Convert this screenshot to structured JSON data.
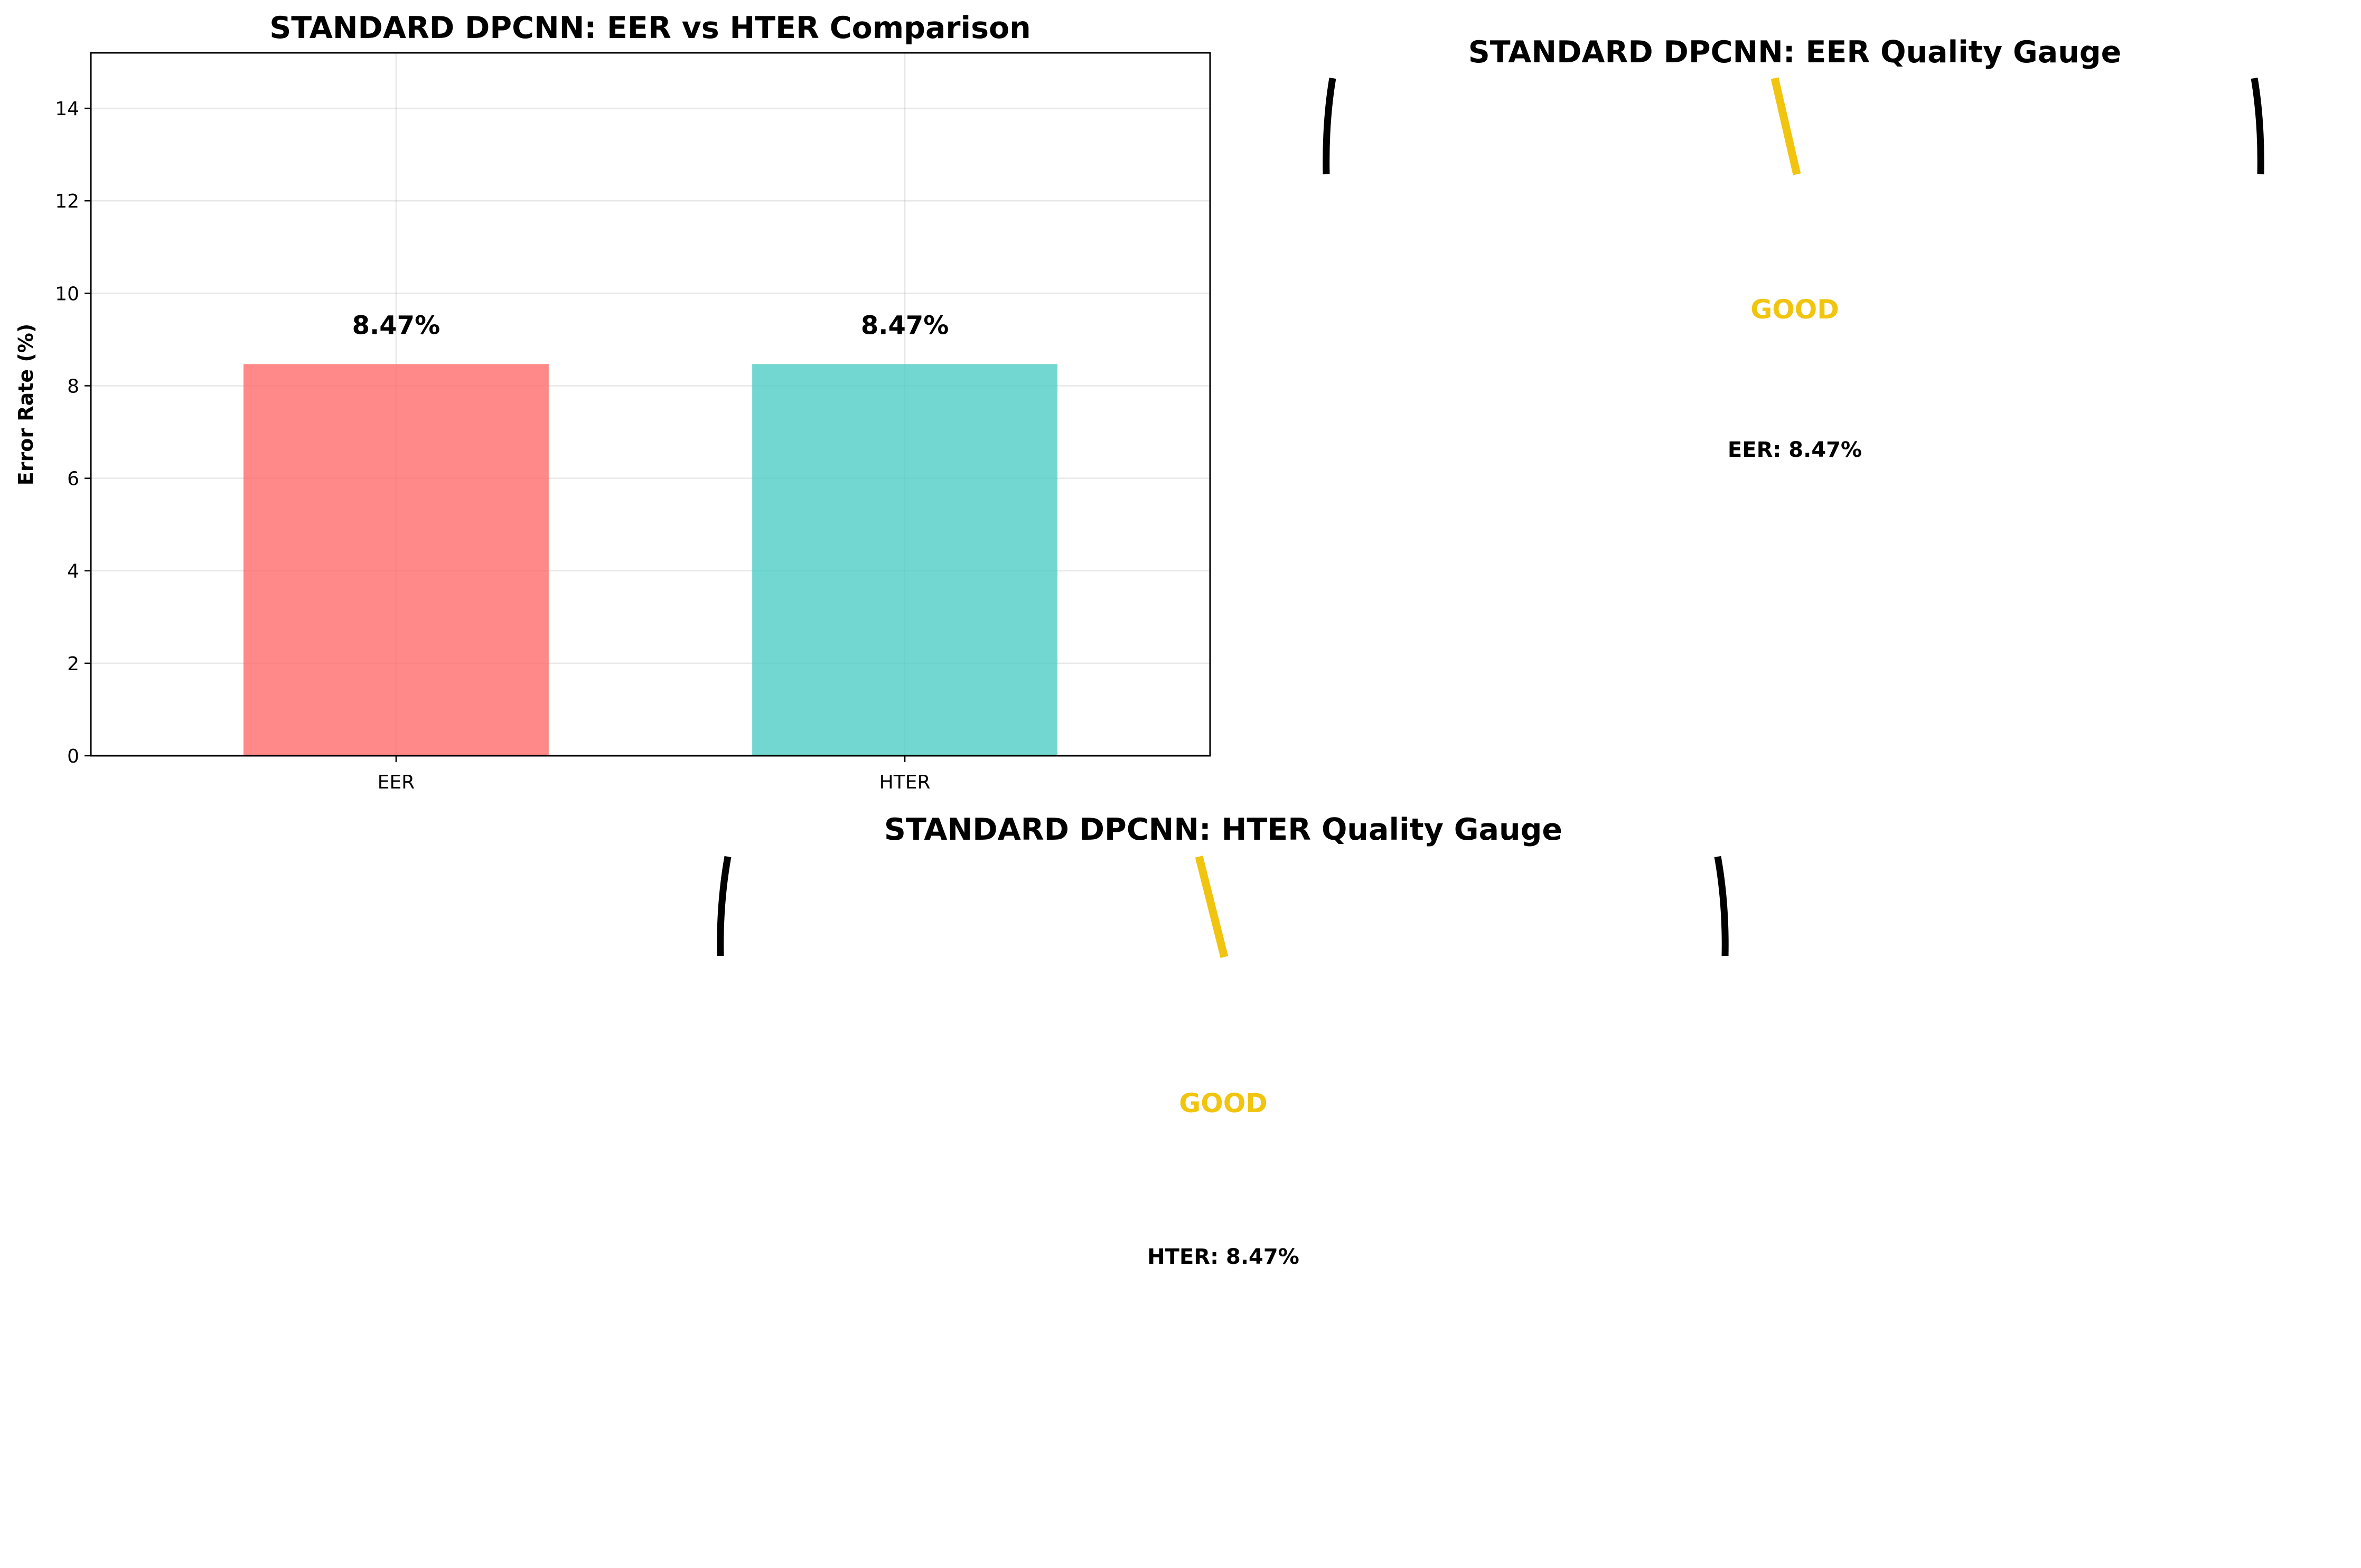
{
  "chart_data": [
    {
      "type": "bar",
      "title": "STANDARD DPCNN: EER vs HTER Comparison",
      "xlabel": "",
      "ylabel": "Error Rate (%)",
      "categories": [
        "EER",
        "HTER"
      ],
      "values": [
        8.47,
        8.47
      ],
      "value_labels": [
        "8.47%",
        "8.47%"
      ],
      "colors": [
        "#ff6b6b",
        "#4ecdc4"
      ],
      "ylim": [
        0,
        15.2
      ],
      "yticks": [
        0,
        2,
        4,
        6,
        8,
        10,
        12,
        14
      ],
      "ytick_labels": [
        "0",
        "2",
        "4",
        "6",
        "8",
        "10",
        "12",
        "14"
      ],
      "grid": true
    },
    {
      "type": "gauge",
      "title": "STANDARD DPCNN: EER Quality Gauge",
      "metric": "EER",
      "value": 8.47,
      "status": "GOOD",
      "status_color": "#f1c40f",
      "value_label": "EER: 8.47%"
    },
    {
      "type": "gauge",
      "title": "STANDARD DPCNN: HTER Quality Gauge",
      "metric": "HTER",
      "value": 8.47,
      "status": "GOOD",
      "status_color": "#f1c40f",
      "value_label": "HTER: 8.47%"
    }
  ]
}
